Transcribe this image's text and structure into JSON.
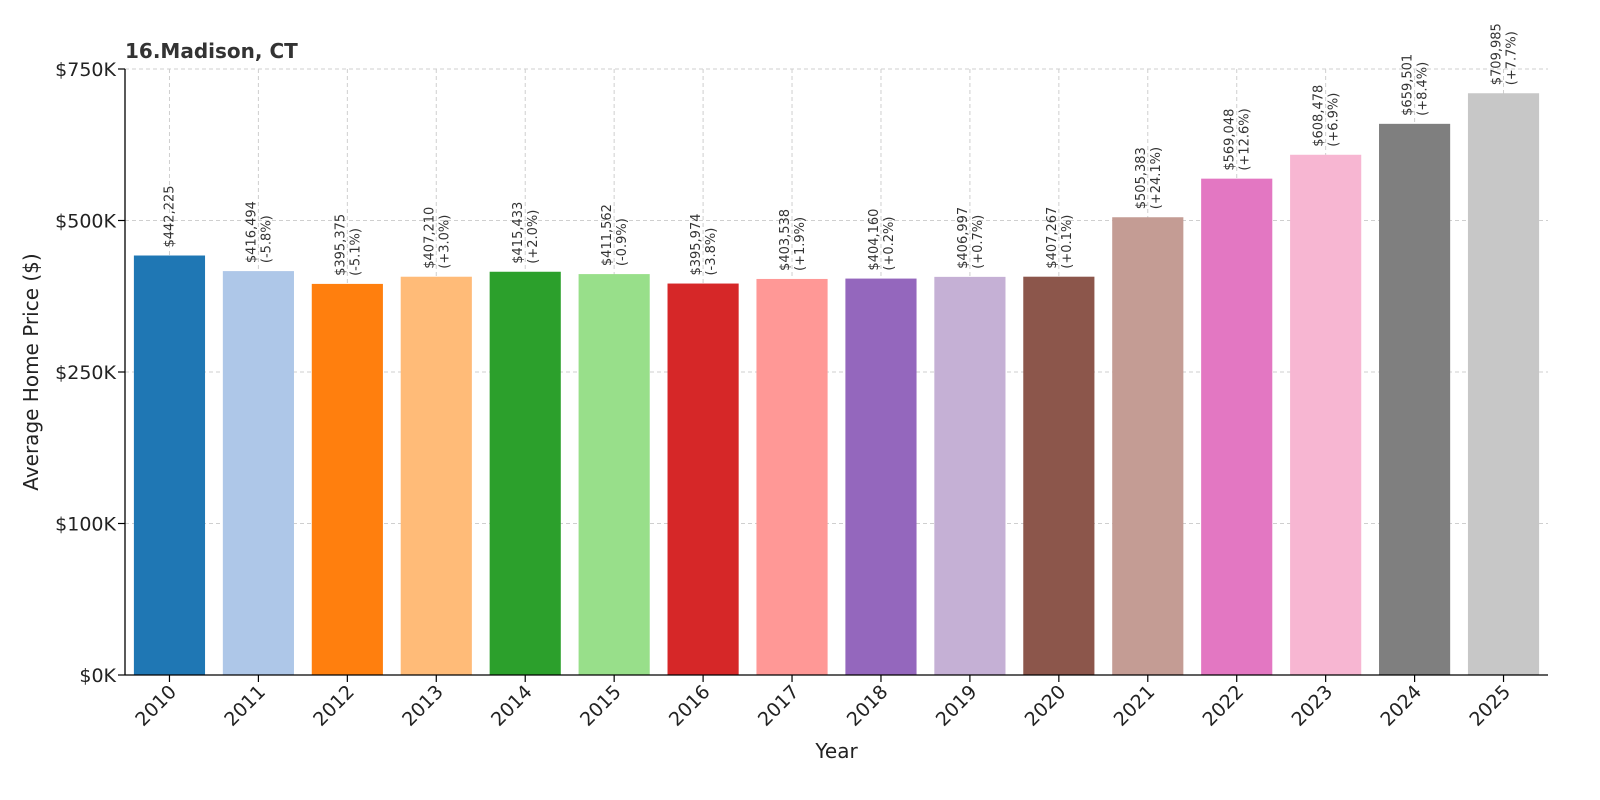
{
  "chart_data": {
    "type": "bar",
    "title": "16.Madison, CT",
    "xlabel": "Year",
    "ylabel": "Average Home Price ($)",
    "categories": [
      "2010",
      "2011",
      "2012",
      "2013",
      "2014",
      "2015",
      "2016",
      "2017",
      "2018",
      "2019",
      "2020",
      "2021",
      "2022",
      "2023",
      "2024",
      "2025"
    ],
    "values": [
      442225,
      416494,
      395375,
      407210,
      415433,
      411562,
      395974,
      403538,
      404160,
      406997,
      407267,
      505383,
      569048,
      608478,
      659501,
      709985
    ],
    "value_labels": [
      "$442,225",
      "$416,494",
      "$395,375",
      "$407,210",
      "$415,433",
      "$411,562",
      "$395,974",
      "$403,538",
      "$404,160",
      "$406,997",
      "$407,267",
      "$505,383",
      "$569,048",
      "$608,478",
      "$659,501",
      "$709,985"
    ],
    "change_labels": [
      "",
      "(-5.8%)",
      "(-5.1%)",
      "(+3.0%)",
      "(+2.0%)",
      "(-0.9%)",
      "(-3.8%)",
      "(+1.9%)",
      "(+0.2%)",
      "(+0.7%)",
      "(+0.1%)",
      "(+24.1%)",
      "(+12.6%)",
      "(+6.9%)",
      "(+8.4%)",
      "(+7.7%)"
    ],
    "colors": [
      "#1f77b4",
      "#aec7e8",
      "#ff7f0e",
      "#ffbb78",
      "#2ca02c",
      "#98df8a",
      "#d62728",
      "#ff9896",
      "#9467bd",
      "#c5b0d5",
      "#8c564b",
      "#c49c94",
      "#e377c2",
      "#f7b6d2",
      "#7f7f7f",
      "#c7c7c7"
    ],
    "ylim": [
      0,
      750000
    ],
    "y_ticks": [
      0,
      100000,
      250000,
      500000,
      750000
    ],
    "y_tick_labels": [
      "$0K",
      "$100K",
      "$250K",
      "$500K",
      "$750K"
    ],
    "grid": true
  }
}
